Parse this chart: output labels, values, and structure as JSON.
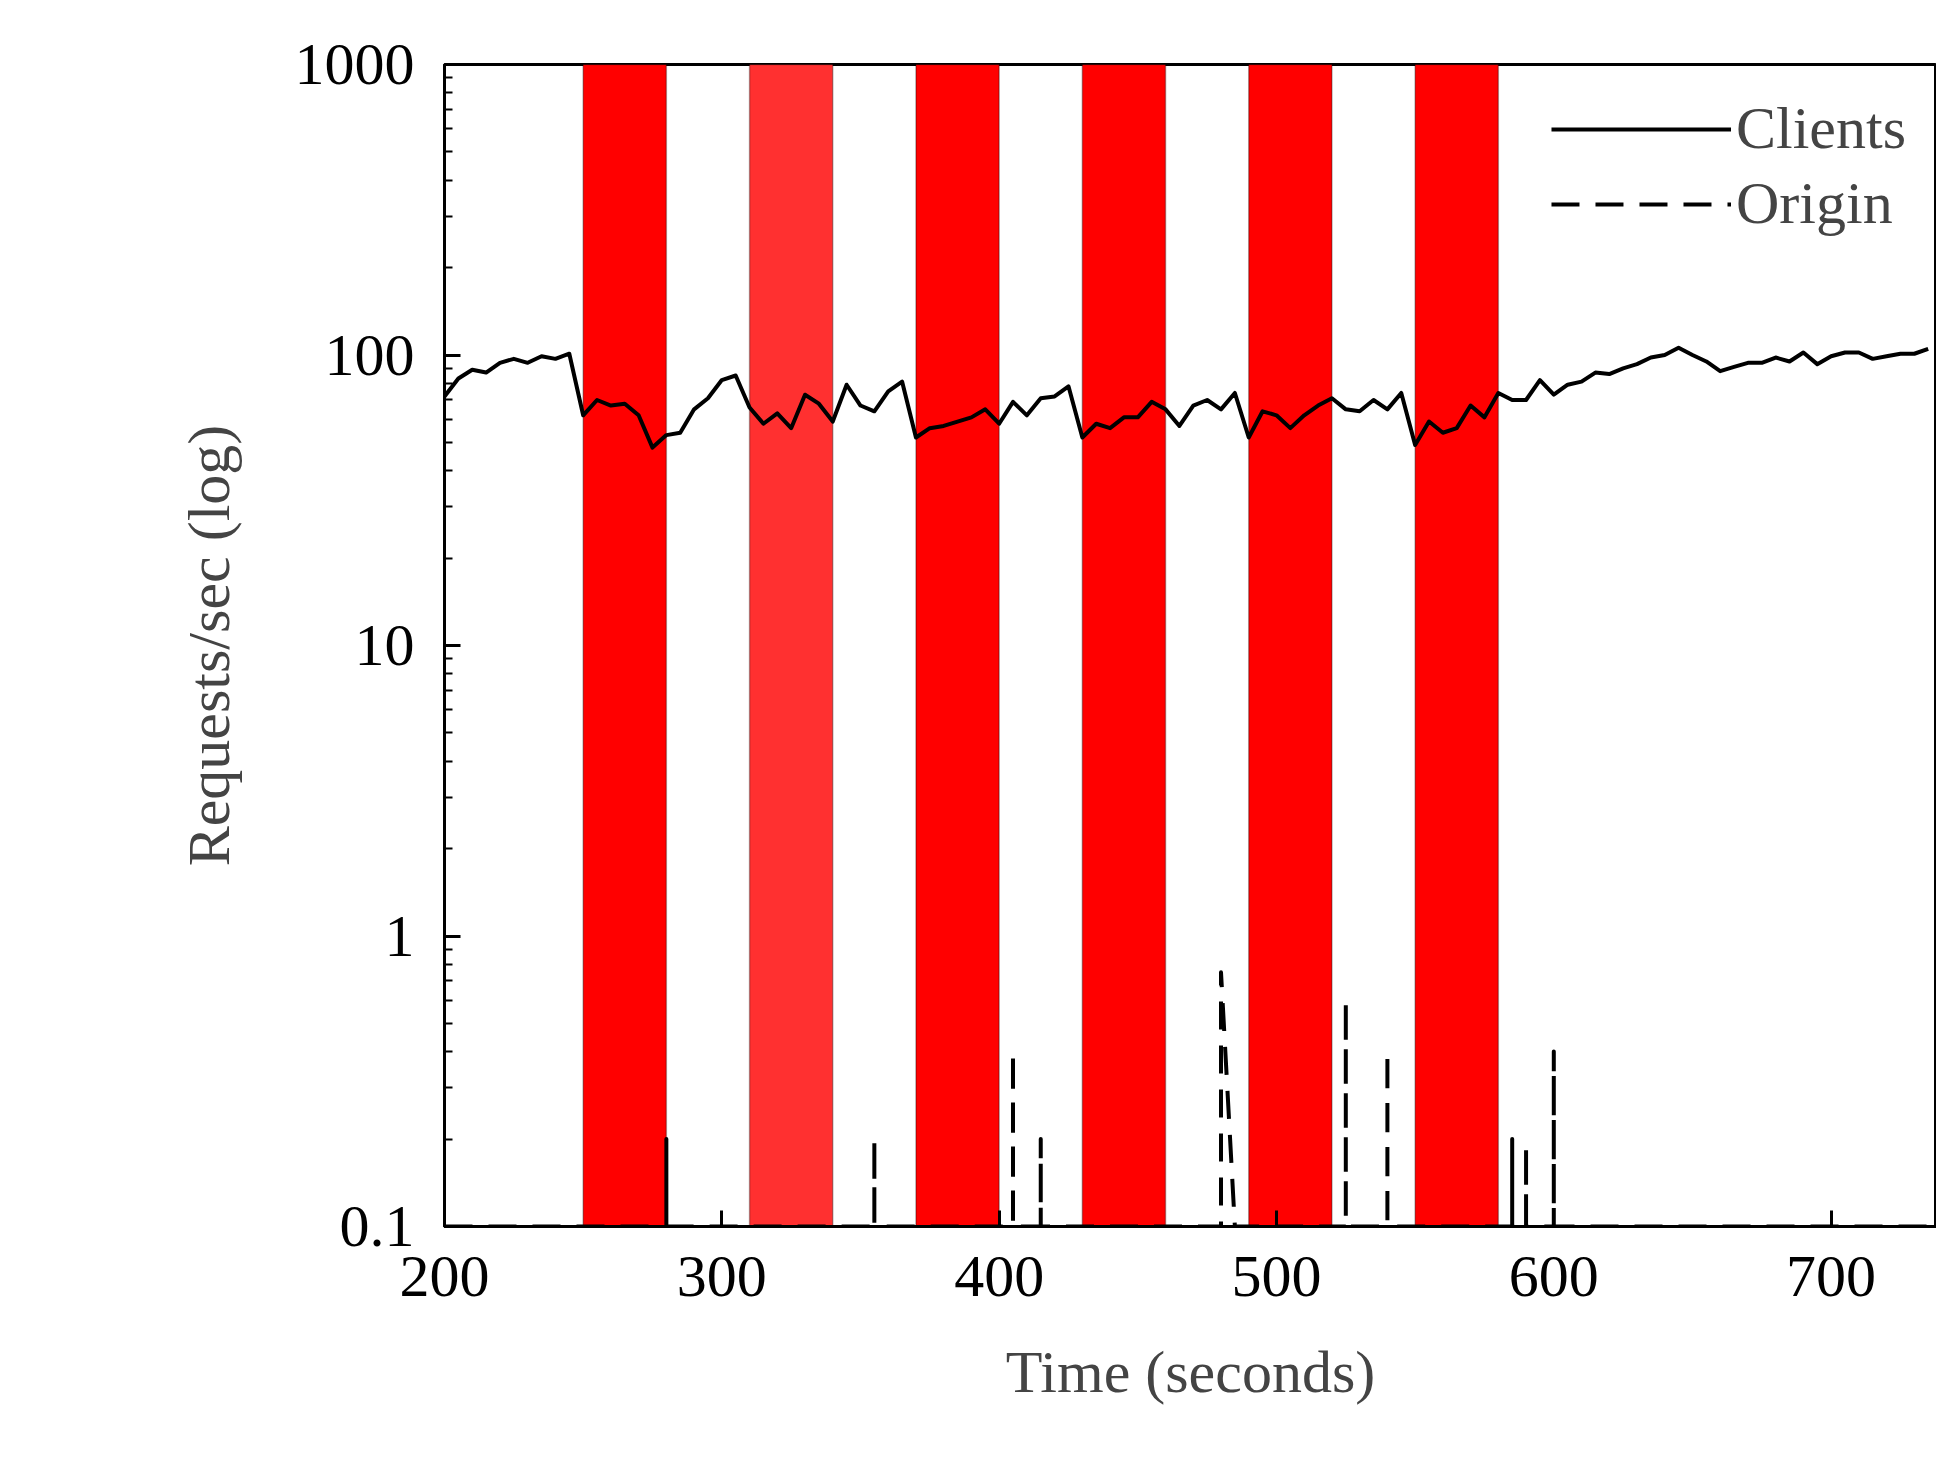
{
  "chart_data": {
    "type": "line",
    "xlabel": "Time (seconds)",
    "ylabel": "Requests/sec (log)",
    "log": "y",
    "xlim": [
      200,
      738
    ],
    "xticks": [
      200,
      300,
      400,
      500,
      600,
      700
    ],
    "ylim": [
      0.1,
      1000
    ],
    "yticks": [
      0.1,
      1,
      10,
      100,
      1000
    ],
    "grid": false,
    "legend": "top right",
    "series": [
      {
        "name": "Clients",
        "color": "#000000",
        "line_style": "solid",
        "x": [
          200,
          205,
          210,
          215,
          220,
          225,
          230,
          235,
          240,
          245,
          250,
          255,
          260,
          265,
          270,
          275,
          280,
          285,
          290,
          295,
          300,
          305,
          310,
          315,
          320,
          325,
          330,
          335,
          340,
          345,
          350,
          355,
          360,
          365,
          370,
          375,
          380,
          385,
          390,
          395,
          400,
          405,
          410,
          415,
          420,
          425,
          430,
          435,
          440,
          445,
          450,
          455,
          460,
          465,
          470,
          475,
          480,
          485,
          490,
          495,
          500,
          505,
          510,
          515,
          520,
          525,
          530,
          535,
          540,
          545,
          550,
          555,
          560,
          565,
          570,
          575,
          580,
          585,
          590,
          595,
          600,
          605,
          610,
          615,
          620,
          625,
          630,
          635,
          640,
          645,
          650,
          655,
          660,
          665,
          670,
          675,
          680,
          685,
          690,
          695,
          700,
          705,
          710,
          715,
          720,
          725,
          730,
          735
        ],
        "values": [
          72,
          83,
          89,
          87,
          94,
          97,
          94,
          99,
          97,
          101,
          62,
          70,
          67,
          68,
          62,
          48,
          53,
          54,
          65,
          71,
          82,
          85,
          66,
          58,
          63,
          56,
          73,
          68,
          59,
          79,
          67,
          64,
          75,
          81,
          52,
          56,
          57,
          59,
          61,
          65,
          58,
          69,
          62,
          71,
          72,
          78,
          52,
          58,
          56,
          61,
          61,
          69,
          65,
          57,
          67,
          70,
          65,
          74,
          52,
          64,
          62,
          56,
          62,
          67,
          71,
          65,
          64,
          70,
          65,
          74,
          49,
          59,
          54,
          56,
          67,
          61,
          74,
          70,
          70,
          82,
          73,
          79,
          81,
          87,
          86,
          90,
          93,
          98,
          100,
          106,
          100,
          95,
          88,
          91,
          94,
          94,
          98,
          95,
          102,
          93,
          99,
          102,
          102,
          97,
          99,
          101,
          101,
          105
        ]
      },
      {
        "name": "Origin",
        "color": "#000000",
        "line_style": "dashed",
        "x": [
          200,
          280,
          280,
          280,
          355,
          355,
          355,
          405,
          405,
          405,
          415,
          415,
          415,
          480,
          480,
          485,
          525,
          525,
          525,
          540,
          540,
          540,
          585,
          585,
          585,
          590,
          590,
          590,
          600,
          600,
          600,
          738
        ],
        "values": [
          0.1,
          0.1,
          0.2,
          0.1,
          0.1,
          0.2,
          0.1,
          0.1,
          0.4,
          0.1,
          0.1,
          0.2,
          0.1,
          0.1,
          0.75,
          0.1,
          0.1,
          0.6,
          0.1,
          0.1,
          0.4,
          0.1,
          0.1,
          0.2,
          0.1,
          0.1,
          0.19,
          0.1,
          0.1,
          0.4,
          0.1,
          0.1
        ]
      }
    ],
    "bands": [
      {
        "axis": "x",
        "from": 250,
        "to": 280,
        "color": "#ff0000"
      },
      {
        "axis": "x",
        "from": 310,
        "to": 340,
        "color": "#ff3030"
      },
      {
        "axis": "x",
        "from": 370,
        "to": 400,
        "color": "#ff0000"
      },
      {
        "axis": "x",
        "from": 430,
        "to": 460,
        "color": "#ff0000"
      },
      {
        "axis": "x",
        "from": 490,
        "to": 520,
        "color": "#ff0000"
      },
      {
        "axis": "x",
        "from": 550,
        "to": 580,
        "color": "#ff0000"
      }
    ]
  }
}
